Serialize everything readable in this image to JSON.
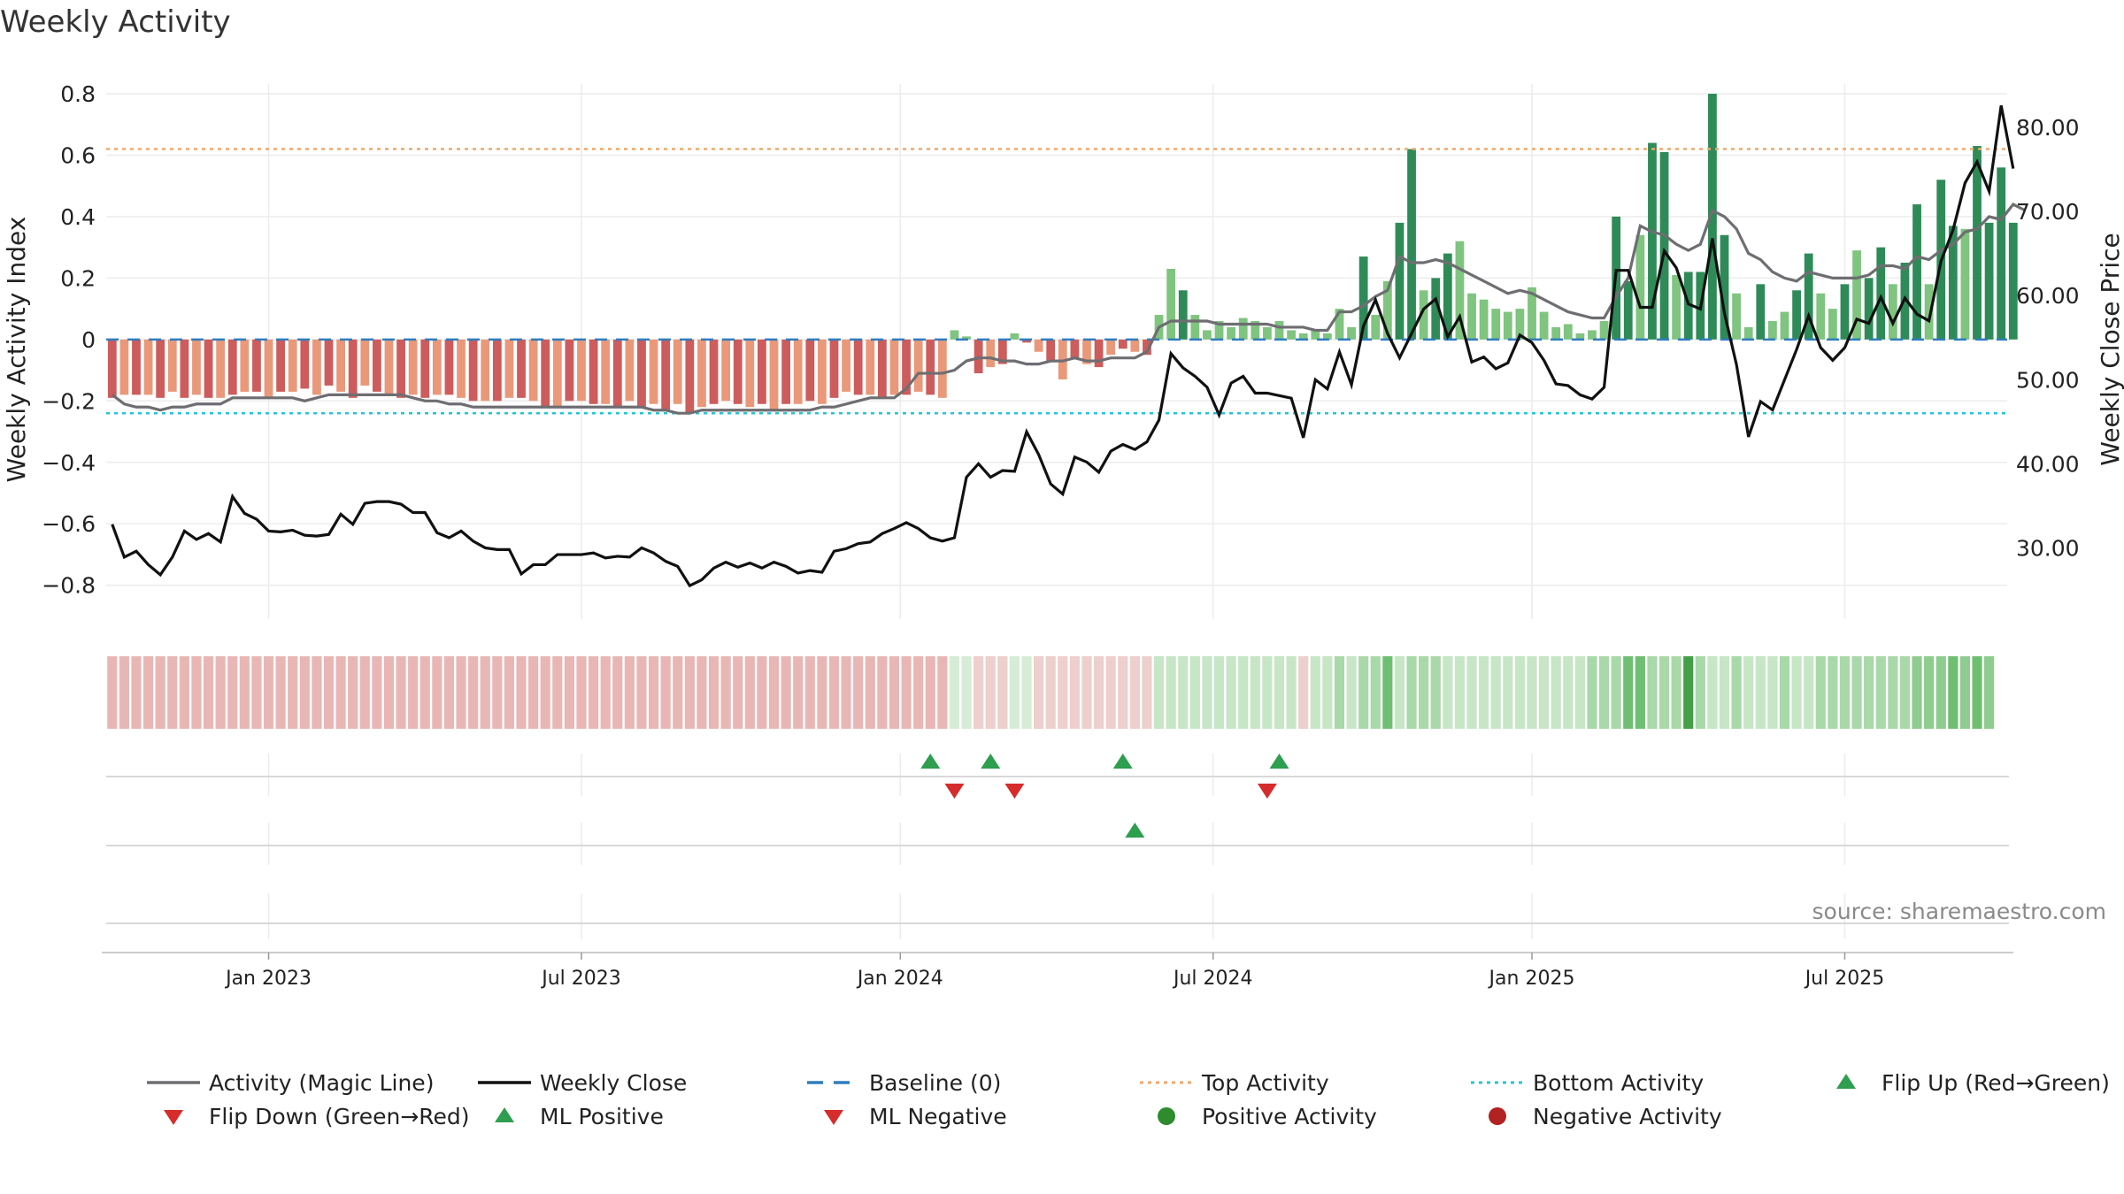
{
  "chart_data": {
    "type": "bar",
    "title": "Weekly Activity",
    "ylabel_left": "Weekly Activity Index",
    "ylabel_right": "Weekly Close Price",
    "ylim_left": [
      -0.87,
      0.8
    ],
    "ylim_right": [
      23.0,
      84.0
    ],
    "yticks_left": [
      "0.8",
      "0.6",
      "0.4",
      "0.2",
      "0",
      "−0.2",
      "−0.4",
      "−0.6",
      "−0.8"
    ],
    "yticks_right": [
      "80.00",
      "70.00",
      "60.00",
      "50.00",
      "40.00",
      "30.00"
    ],
    "x_tick_labels": [
      "Jan 2023",
      "Jul 2023",
      "Jan 2024",
      "Jul 2024",
      "Jan 2025",
      "Jul 2025"
    ],
    "x_tick_weeks": [
      13.0,
      39.0,
      65.5,
      91.5,
      118.0,
      144.0
    ],
    "week_count": 158,
    "top_activity": 0.62,
    "bottom_activity": -0.24,
    "series": [
      {
        "name": "Weekly Activity Index",
        "values": [
          -0.19,
          -0.18,
          -0.18,
          -0.18,
          -0.19,
          -0.17,
          -0.19,
          -0.18,
          -0.19,
          -0.19,
          -0.18,
          -0.17,
          -0.17,
          -0.19,
          -0.17,
          -0.17,
          -0.16,
          -0.18,
          -0.15,
          -0.17,
          -0.19,
          -0.15,
          -0.17,
          -0.18,
          -0.19,
          -0.18,
          -0.19,
          -0.18,
          -0.18,
          -0.19,
          -0.2,
          -0.2,
          -0.2,
          -0.19,
          -0.19,
          -0.2,
          -0.22,
          -0.22,
          -0.2,
          -0.2,
          -0.21,
          -0.21,
          -0.22,
          -0.2,
          -0.22,
          -0.21,
          -0.23,
          -0.21,
          -0.24,
          -0.22,
          -0.21,
          -0.2,
          -0.21,
          -0.22,
          -0.21,
          -0.23,
          -0.21,
          -0.21,
          -0.2,
          -0.21,
          -0.19,
          -0.17,
          -0.18,
          -0.18,
          -0.19,
          -0.18,
          -0.18,
          -0.17,
          -0.18,
          -0.19,
          0.03,
          0.01,
          -0.11,
          -0.09,
          -0.08,
          0.02,
          -0.01,
          -0.04,
          -0.07,
          -0.13,
          -0.06,
          -0.08,
          -0.09,
          -0.05,
          -0.03,
          -0.04,
          -0.05,
          0.08,
          0.23,
          0.16,
          0.08,
          0.03,
          0.06,
          0.04,
          0.07,
          0.06,
          0.04,
          0.06,
          0.03,
          0.02,
          0.03,
          0.02,
          0.1,
          0.04,
          0.27,
          0.08,
          0.19,
          0.38,
          0.62,
          0.16,
          0.2,
          0.28,
          0.32,
          0.15,
          0.13,
          0.1,
          0.09,
          0.1,
          0.17,
          0.09,
          0.04,
          0.05,
          0.02,
          0.03,
          0.06,
          0.4,
          0.19,
          0.34,
          0.64,
          0.61,
          0.21,
          0.22,
          0.22,
          0.8,
          0.34,
          0.15,
          0.04,
          0.18,
          0.06,
          0.09,
          0.16,
          0.28,
          0.15,
          0.1,
          0.18,
          0.29,
          0.2,
          0.3,
          0.18,
          0.25,
          0.44,
          0.18,
          0.52,
          0.37,
          0.36,
          0.63,
          0.38,
          0.56,
          0.38
        ]
      },
      {
        "name": "Activity (Magic Line)",
        "values": [
          -0.18,
          -0.21,
          -0.22,
          -0.22,
          -0.23,
          -0.22,
          -0.22,
          -0.21,
          -0.21,
          -0.21,
          -0.19,
          -0.19,
          -0.19,
          -0.19,
          -0.19,
          -0.19,
          -0.2,
          -0.19,
          -0.18,
          -0.18,
          -0.18,
          -0.18,
          -0.18,
          -0.18,
          -0.18,
          -0.19,
          -0.2,
          -0.2,
          -0.21,
          -0.21,
          -0.22,
          -0.22,
          -0.22,
          -0.22,
          -0.22,
          -0.22,
          -0.22,
          -0.22,
          -0.22,
          -0.22,
          -0.22,
          -0.22,
          -0.22,
          -0.22,
          -0.22,
          -0.23,
          -0.23,
          -0.24,
          -0.24,
          -0.23,
          -0.23,
          -0.23,
          -0.23,
          -0.23,
          -0.23,
          -0.23,
          -0.23,
          -0.23,
          -0.23,
          -0.22,
          -0.22,
          -0.21,
          -0.2,
          -0.19,
          -0.19,
          -0.19,
          -0.16,
          -0.11,
          -0.11,
          -0.11,
          -0.1,
          -0.07,
          -0.06,
          -0.06,
          -0.07,
          -0.07,
          -0.08,
          -0.08,
          -0.07,
          -0.07,
          -0.06,
          -0.07,
          -0.07,
          -0.06,
          -0.06,
          -0.06,
          -0.04,
          0.04,
          0.06,
          0.06,
          0.06,
          0.06,
          0.05,
          0.05,
          0.05,
          0.05,
          0.05,
          0.04,
          0.04,
          0.04,
          0.03,
          0.03,
          0.09,
          0.09,
          0.11,
          0.14,
          0.16,
          0.27,
          0.25,
          0.25,
          0.26,
          0.25,
          0.23,
          0.21,
          0.19,
          0.17,
          0.15,
          0.16,
          0.15,
          0.13,
          0.11,
          0.09,
          0.08,
          0.07,
          0.07,
          0.14,
          0.2,
          0.37,
          0.35,
          0.34,
          0.31,
          0.29,
          0.31,
          0.42,
          0.4,
          0.36,
          0.28,
          0.26,
          0.22,
          0.2,
          0.19,
          0.22,
          0.21,
          0.2,
          0.2,
          0.2,
          0.21,
          0.24,
          0.24,
          0.23,
          0.27,
          0.26,
          0.29,
          0.31,
          0.35,
          0.36,
          0.4,
          0.39,
          0.44,
          0.42
        ]
      },
      {
        "name": "Weekly Close",
        "values": [
          32.8,
          28.9,
          29.6,
          28.0,
          26.8,
          28.9,
          32.0,
          31.0,
          31.7,
          30.7,
          36.1,
          34.1,
          33.4,
          32.0,
          31.9,
          32.1,
          31.5,
          31.4,
          31.6,
          34.0,
          32.8,
          35.3,
          35.5,
          35.5,
          35.2,
          34.2,
          34.2,
          31.8,
          31.2,
          32.0,
          30.8,
          30.0,
          29.8,
          29.8,
          26.9,
          28.0,
          28.0,
          29.2,
          29.2,
          29.2,
          29.4,
          28.8,
          29.0,
          28.9,
          30.0,
          29.4,
          28.4,
          27.8,
          25.5,
          26.2,
          27.6,
          28.3,
          27.7,
          28.2,
          27.6,
          28.3,
          27.8,
          27.0,
          27.3,
          27.1,
          29.6,
          29.9,
          30.5,
          30.7,
          31.7,
          32.3,
          33.0,
          32.3,
          31.2,
          30.8,
          31.2,
          38.4,
          40.0,
          38.4,
          39.2,
          39.1,
          43.8,
          41.1,
          37.6,
          36.4,
          40.8,
          40.2,
          39.0,
          41.5,
          42.3,
          41.7,
          42.6,
          45.2,
          53.1,
          51.4,
          50.4,
          49.1,
          45.8,
          49.6,
          50.4,
          48.4,
          48.4,
          48.1,
          47.8,
          43.1,
          50.0,
          48.9,
          53.3,
          49.4,
          56.4,
          59.5,
          55.5,
          52.6,
          55.5,
          58.4,
          59.6,
          55.1,
          57.5,
          52.1,
          52.7,
          51.3,
          52.0,
          55.3,
          54.4,
          52.3,
          49.5,
          49.3,
          48.2,
          47.7,
          49.1,
          63.0,
          63.0,
          58.6,
          58.6,
          65.3,
          63.3,
          59.0,
          58.4,
          66.8,
          57.9,
          51.8,
          43.2,
          47.4,
          46.4,
          50.0,
          53.6,
          57.6,
          53.8,
          52.3,
          53.8,
          57.2,
          56.7,
          59.8,
          56.7,
          59.7,
          57.8,
          57.0,
          64.1,
          67.8,
          73.4,
          75.9,
          72.4,
          82.6,
          75.1
        ]
      }
    ],
    "strip_colors": [
      "#e8b7b5",
      "#e8b7b5",
      "#e8b7b5",
      "#e8b7b5",
      "#e8b7b5",
      "#e8b7b5",
      "#e8b7b5",
      "#e8b7b5",
      "#e8b7b5",
      "#e8b7b5",
      "#e8b7b5",
      "#e8b7b5",
      "#e8b7b5",
      "#e8b7b5",
      "#e8b7b5",
      "#e8b7b5",
      "#e8b7b5",
      "#e8b7b5",
      "#e8b7b5",
      "#e8b7b5",
      "#e8b7b5",
      "#e8b7b5",
      "#e8b7b5",
      "#e8b7b5",
      "#e8b7b5",
      "#e8b7b5",
      "#e8b7b5",
      "#e8b7b5",
      "#e8b7b5",
      "#e8b7b5",
      "#e8b7b5",
      "#e8b7b5",
      "#e8b7b5",
      "#e8b7b5",
      "#e8b7b5",
      "#e8b7b5",
      "#e8b7b5",
      "#e8b7b5",
      "#e8b7b5",
      "#e8b7b5",
      "#e8b7b5",
      "#e8b7b5",
      "#e8b7b5",
      "#e8b7b5",
      "#e8b7b5",
      "#e8b7b5",
      "#e8b7b5",
      "#e8b7b5",
      "#e8b7b5",
      "#e8b7b5",
      "#e8b7b5",
      "#e8b7b5",
      "#e8b7b5",
      "#e8b7b5",
      "#e8b7b5",
      "#e8b7b5",
      "#e8b7b5",
      "#e8b7b5",
      "#e8b7b5",
      "#e8b7b5",
      "#e8b7b5",
      "#e8b7b5",
      "#e8b7b5",
      "#e8b7b5",
      "#e8b7b5",
      "#e8b7b5",
      "#e8b7b5",
      "#e8b7b5",
      "#e8b7b5",
      "#e8b7b5",
      "#d6ecd6",
      "#d6ecd6",
      "#edcfcd",
      "#edcfcd",
      "#edcfcd",
      "#d6ecd6",
      "#d6ecd6",
      "#edcfcd",
      "#edcfcd",
      "#edcfcd",
      "#edcfcd",
      "#edcfcd",
      "#edcfcd",
      "#edcfcd",
      "#edcfcd",
      "#edcfcd",
      "#edcfcd",
      "#c6e6c6",
      "#c6e6c6",
      "#c6e6c6",
      "#c6e6c6",
      "#c6e6c6",
      "#c6e6c6",
      "#c6e6c6",
      "#c6e6c6",
      "#c6e6c6",
      "#c6e6c6",
      "#c6e6c6",
      "#c6e6c6",
      "#edcfcd",
      "#c6e6c6",
      "#c6e6c6",
      "#a9d8a9",
      "#c6e6c6",
      "#a9d8a9",
      "#a9d8a9",
      "#6fbf73",
      "#c6e6c6",
      "#a9d8a9",
      "#a9d8a9",
      "#a9d8a9",
      "#c6e6c6",
      "#c6e6c6",
      "#c6e6c6",
      "#c6e6c6",
      "#c6e6c6",
      "#c6e6c6",
      "#c6e6c6",
      "#c6e6c6",
      "#c6e6c6",
      "#c6e6c6",
      "#c6e6c6",
      "#c6e6c6",
      "#a9d8a9",
      "#a9d8a9",
      "#a9d8a9",
      "#6fbf73",
      "#6fbf73",
      "#a9d8a9",
      "#a9d8a9",
      "#a9d8a9",
      "#43a047",
      "#a9d8a9",
      "#c6e6c6",
      "#c6e6c6",
      "#a9d8a9",
      "#c6e6c6",
      "#c6e6c6",
      "#c6e6c6",
      "#a9d8a9",
      "#c6e6c6",
      "#c6e6c6",
      "#a9d8a9",
      "#a9d8a9",
      "#a9d8a9",
      "#a9d8a9",
      "#a9d8a9",
      "#a9d8a9",
      "#a9d8a9",
      "#a9d8a9",
      "#8fcc8f",
      "#8fcc8f",
      "#8fcc8f",
      "#6fbf73",
      "#8fcc8f",
      "#6fbf73",
      "#8fcc8f"
    ],
    "flips_up": [
      68,
      73,
      84,
      97
    ],
    "flips_down": [
      70,
      75,
      96
    ],
    "ml_positive": [
      85
    ],
    "ml_negative": [],
    "source": "source: sharemaestro.com",
    "legend": [
      {
        "label": "Activity (Magic Line)",
        "kind": "line",
        "color": "#6e6e72"
      },
      {
        "label": "Weekly Close",
        "kind": "line",
        "color": "#111111"
      },
      {
        "label": "Baseline (0)",
        "kind": "dash",
        "color": "#2f7dbf"
      },
      {
        "label": "Top Activity",
        "kind": "dot",
        "color": "#f0a868"
      },
      {
        "label": "Bottom Activity",
        "kind": "dot",
        "color": "#22c5d8"
      },
      {
        "label": "Flip Up (Red→Green)",
        "kind": "tri-up",
        "color": "#2e9e4f"
      },
      {
        "label": "Flip Down (Green→Red)",
        "kind": "tri-down",
        "color": "#d62c2c"
      },
      {
        "label": "ML Positive",
        "kind": "tri-up",
        "color": "#2e9e4f"
      },
      {
        "label": "ML Negative",
        "kind": "tri-down",
        "color": "#d62c2c"
      },
      {
        "label": "Positive Activity",
        "kind": "circle",
        "color": "#2e8b2e"
      },
      {
        "label": "Negative Activity",
        "kind": "circle",
        "color": "#b22222"
      }
    ],
    "colors": {
      "bar_red_dark": "#cd5c5c",
      "bar_red_light": "#e9997a",
      "bar_green_dark": "#2e8b57",
      "bar_green_light": "#7fc47f",
      "magic_line": "#6e6e72",
      "close_line": "#111111",
      "baseline": "#2f7dbf",
      "top_line": "#f0a868",
      "bottom_line": "#22c5d8",
      "grid": "#ececec",
      "axis_text": "#222222"
    }
  }
}
